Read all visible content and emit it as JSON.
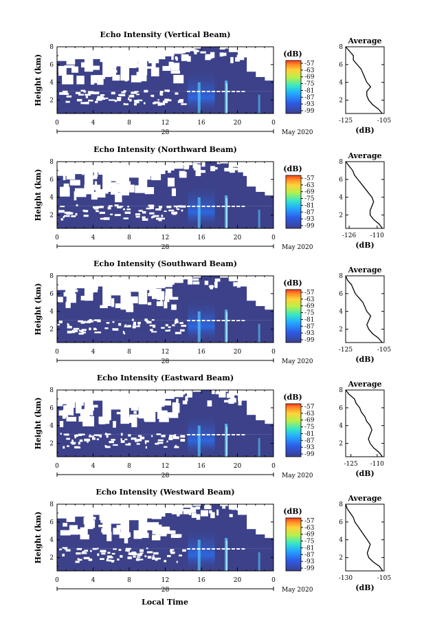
{
  "colorbar": {
    "unit": "(dB)",
    "ticks": [
      "-57",
      "-63",
      "-69",
      "-75",
      "-81",
      "-87",
      "-93",
      "-99"
    ],
    "colors": [
      "#ff3b1e",
      "#ff8f26",
      "#ffd23a",
      "#b8f04a",
      "#35e6c8",
      "#24a9ff",
      "#2d5ce8",
      "#3b3f8e"
    ]
  },
  "fill_color": "#3c4189",
  "bright_color": "#55c8ff",
  "line_color": "#000000",
  "shared": {
    "xlabel": "Local Time",
    "date_label": "May 2020",
    "day_label": "28",
    "avg_title": "Average",
    "avg_xlabel": "(dB)",
    "ylabel": "Height (km)"
  },
  "chart_data": [
    {
      "type": "heatmap",
      "title": "Echo Intensity (Vertical Beam)",
      "ylabel": "Height (km)",
      "xlabel": "Local Time",
      "x_ticks": [
        "0",
        "4",
        "8",
        "12",
        "16",
        "20",
        "0"
      ],
      "xlim": [
        0,
        24
      ],
      "y_ticks": [
        "2",
        "4",
        "6",
        "8"
      ],
      "ylim": [
        0.5,
        8
      ],
      "avg_profile": {
        "title": "Average",
        "xlabel": "(dB)",
        "x_ticks": [
          "-125",
          "-105"
        ],
        "xlim": [
          -125,
          -105
        ],
        "y_ticks": [
          "2",
          "4",
          "6",
          "8"
        ],
        "ylim": [
          0.5,
          8
        ],
        "heights": [
          0.5,
          1.0,
          1.5,
          2.0,
          2.5,
          3.0,
          3.5,
          4.0,
          4.5,
          5.0,
          5.5,
          6.0,
          6.5,
          7.0,
          7.5,
          8.0
        ],
        "values": [
          -106,
          -108,
          -111,
          -113,
          -114,
          -114,
          -112,
          -114,
          -115,
          -116,
          -117,
          -119,
          -121,
          -121,
          -123,
          -125
        ]
      }
    },
    {
      "type": "heatmap",
      "title": "Echo Intensity (Northward Beam)",
      "ylabel": "Height (km)",
      "xlabel": "Local Time",
      "x_ticks": [
        "0",
        "4",
        "8",
        "12",
        "16",
        "20",
        "0"
      ],
      "xlim": [
        0,
        24
      ],
      "y_ticks": [
        "2",
        "4",
        "6",
        "8"
      ],
      "ylim": [
        0.5,
        8
      ],
      "avg_profile": {
        "title": "Average",
        "xlabel": "(dB)",
        "x_ticks": [
          "-126",
          "-110"
        ],
        "xlim": [
          -128,
          -106
        ],
        "y_ticks": [
          "2",
          "4",
          "6",
          "8"
        ],
        "ylim": [
          0.5,
          8
        ],
        "heights": [
          0.5,
          1.0,
          1.5,
          2.0,
          2.5,
          3.0,
          3.5,
          4.0,
          4.5,
          5.0,
          5.5,
          6.0,
          6.5,
          7.0,
          7.5,
          8.0
        ],
        "values": [
          -107,
          -109,
          -112,
          -114,
          -114,
          -113,
          -112,
          -113,
          -115,
          -117,
          -119,
          -121,
          -123,
          -124,
          -126,
          -128
        ]
      }
    },
    {
      "type": "heatmap",
      "title": "Echo Intensity (Southward Beam)",
      "ylabel": "Height (km)",
      "xlabel": "Local Time",
      "x_ticks": [
        "0",
        "4",
        "8",
        "12",
        "16",
        "20",
        "0"
      ],
      "xlim": [
        0,
        24
      ],
      "y_ticks": [
        "2",
        "4",
        "6",
        "8"
      ],
      "ylim": [
        0.5,
        8
      ],
      "avg_profile": {
        "title": "Average",
        "xlabel": "(dB)",
        "x_ticks": [
          "-125",
          "-105"
        ],
        "xlim": [
          -125,
          -105
        ],
        "y_ticks": [
          "2",
          "4",
          "6",
          "8"
        ],
        "ylim": [
          0.5,
          8
        ],
        "heights": [
          0.5,
          1.0,
          1.5,
          2.0,
          2.5,
          3.0,
          3.5,
          4.0,
          4.5,
          5.0,
          5.5,
          6.0,
          6.5,
          7.0,
          7.5,
          8.0
        ],
        "values": [
          -106,
          -108,
          -111,
          -113,
          -114,
          -113,
          -112,
          -114,
          -115,
          -116,
          -118,
          -120,
          -121,
          -122,
          -124,
          -125
        ]
      }
    },
    {
      "type": "heatmap",
      "title": "Echo Intensity (Eastward Beam)",
      "ylabel": "Height (km)",
      "xlabel": "Local Time",
      "x_ticks": [
        "0",
        "4",
        "8",
        "12",
        "16",
        "20",
        "0"
      ],
      "xlim": [
        0,
        24
      ],
      "y_ticks": [
        "2",
        "4",
        "6",
        "8"
      ],
      "ylim": [
        0.5,
        8
      ],
      "avg_profile": {
        "title": "Average",
        "xlabel": "(dB)",
        "x_ticks": [
          "-125",
          "-110"
        ],
        "xlim": [
          -128,
          -106
        ],
        "y_ticks": [
          "2",
          "4",
          "6",
          "8"
        ],
        "ylim": [
          0.5,
          8
        ],
        "heights": [
          0.5,
          1.0,
          1.5,
          2.0,
          2.5,
          3.0,
          3.5,
          4.0,
          4.5,
          5.0,
          5.5,
          6.0,
          6.5,
          7.0,
          7.5,
          8.0
        ],
        "values": [
          -107,
          -109,
          -112,
          -114,
          -115,
          -114,
          -113,
          -114,
          -116,
          -117,
          -119,
          -120,
          -122,
          -123,
          -126,
          -128
        ]
      }
    },
    {
      "type": "heatmap",
      "title": "Echo Intensity (Westward Beam)",
      "ylabel": "Height (km)",
      "xlabel": "Local Time",
      "x_ticks": [
        "0",
        "4",
        "8",
        "12",
        "16",
        "20",
        "0"
      ],
      "xlim": [
        0,
        24
      ],
      "y_ticks": [
        "2",
        "4",
        "6",
        "8"
      ],
      "ylim": [
        0.5,
        8
      ],
      "avg_profile": {
        "title": "Average",
        "xlabel": "(dB)",
        "x_ticks": [
          "-130",
          "-105"
        ],
        "xlim": [
          -130,
          -105
        ],
        "y_ticks": [
          "2",
          "4",
          "6",
          "8"
        ],
        "ylim": [
          0.5,
          8
        ],
        "heights": [
          0.5,
          1.0,
          1.5,
          2.0,
          2.5,
          3.0,
          3.5,
          4.0,
          4.5,
          5.0,
          5.5,
          6.0,
          6.5,
          7.0,
          7.5,
          8.0
        ],
        "values": [
          -106,
          -108,
          -112,
          -115,
          -116,
          -115,
          -114,
          -116,
          -118,
          -120,
          -122,
          -124,
          -125,
          -127,
          -129,
          -130
        ]
      }
    }
  ]
}
